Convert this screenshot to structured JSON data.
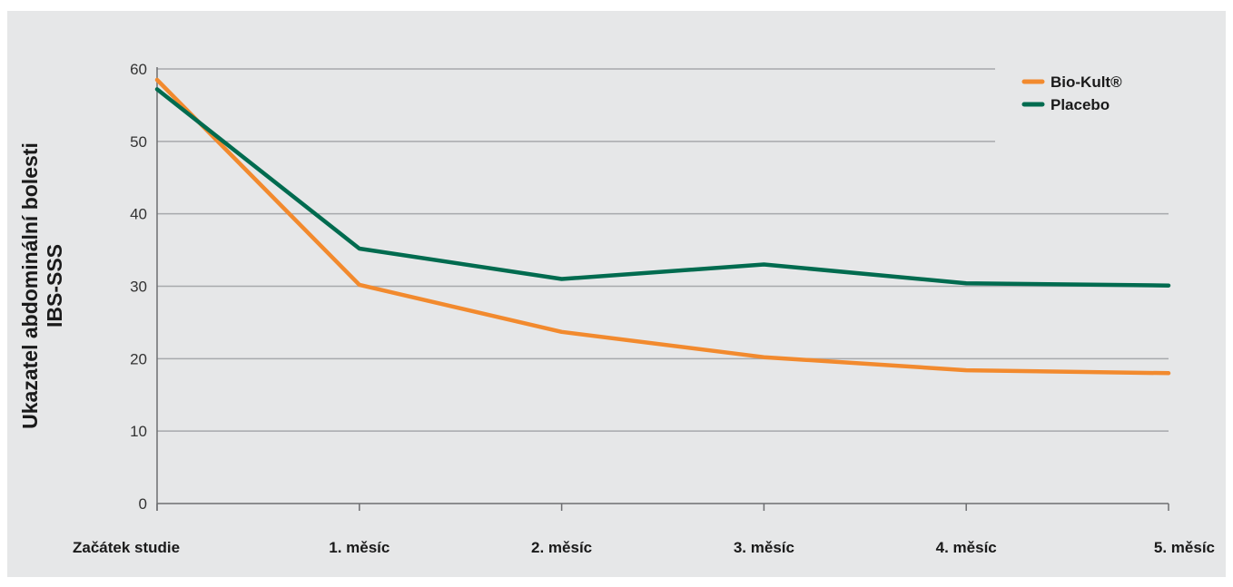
{
  "chart_data": {
    "type": "line",
    "categories": [
      "Začátek studie",
      "1. měsíc",
      "2. měsíc",
      "3. měsíc",
      "4. měsíc",
      "5. měsíc"
    ],
    "series": [
      {
        "name": "Bio-Kult®",
        "color": "#f28a2e",
        "values": [
          58.5,
          30.2,
          23.7,
          20.2,
          18.4,
          18.0
        ]
      },
      {
        "name": "Placebo",
        "color": "#006b4f",
        "values": [
          57.2,
          35.2,
          31.0,
          33.0,
          30.4,
          30.1
        ]
      }
    ],
    "ylabel_line1": "Ukazatel abdominální bolesti",
    "ylabel_line2": "IBS-SSS",
    "yticks": [
      0,
      10,
      20,
      30,
      40,
      50,
      60
    ],
    "ylim": [
      0,
      60
    ],
    "grid": true,
    "legend_position": "top-right"
  }
}
